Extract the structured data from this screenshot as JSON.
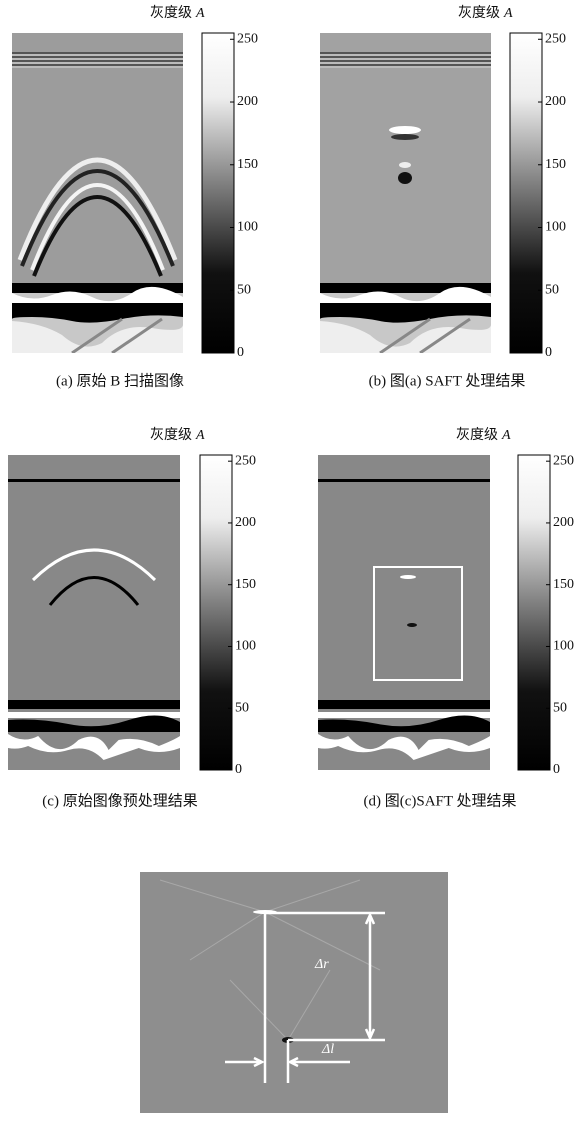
{
  "panels": [
    {
      "label": {
        "text": "灰度级",
        "var": "A"
      },
      "ticks": [
        0,
        50,
        100,
        150,
        200,
        250
      ],
      "scale": [
        0,
        255
      ],
      "caption": "(a) 原始 B 扫描图像"
    },
    {
      "label": {
        "text": "灰度级",
        "var": "A"
      },
      "ticks": [
        0,
        50,
        100,
        150,
        200,
        250
      ],
      "scale": [
        0,
        255
      ],
      "caption": "(b) 图(a) SAFT 处理结果"
    },
    {
      "label": {
        "text": "灰度级",
        "var": "A"
      },
      "ticks": [
        0,
        50,
        100,
        150,
        200,
        250
      ],
      "scale": [
        0,
        255
      ],
      "caption": "(c) 原始图像预处理结果"
    },
    {
      "label": {
        "text": "灰度级",
        "var": "A"
      },
      "ticks": [
        0,
        50,
        100,
        150,
        200,
        250
      ],
      "scale": [
        0,
        255
      ],
      "caption": "(d) 图(c)SAFT 处理结果"
    }
  ],
  "detail": {
    "delta_r": "Δr",
    "delta_l": "Δl"
  }
}
